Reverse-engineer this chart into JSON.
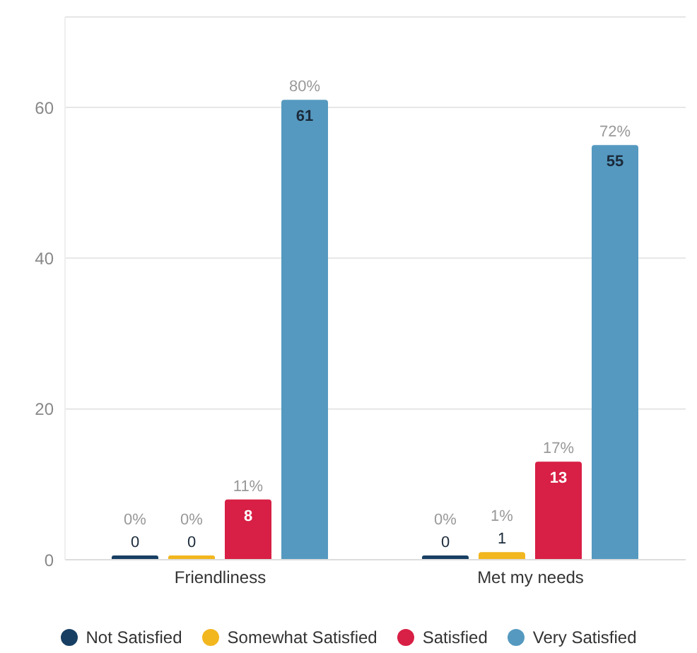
{
  "chart_data": {
    "type": "bar",
    "categories": [
      "Friendliness",
      "Met my needs"
    ],
    "series": [
      {
        "name": "Not Satisfied",
        "color": "#173f63",
        "values": [
          0,
          0
        ]
      },
      {
        "name": "Somewhat Satisfied",
        "color": "#f2b61e",
        "values": [
          0,
          1
        ]
      },
      {
        "name": "Satisfied",
        "color": "#d81f45",
        "values": [
          8,
          13
        ]
      },
      {
        "name": "Very Satisfied",
        "color": "#5599c0",
        "values": [
          61,
          55
        ]
      }
    ],
    "annotations": [
      "0%",
      "0%",
      "11%",
      "80%",
      "0%",
      "1%",
      "17%",
      "72%"
    ],
    "ylim": [
      0,
      72
    ],
    "yticks": [
      0,
      20,
      40,
      60
    ],
    "grid": "y",
    "legend": "bottom",
    "data_labels": true
  }
}
